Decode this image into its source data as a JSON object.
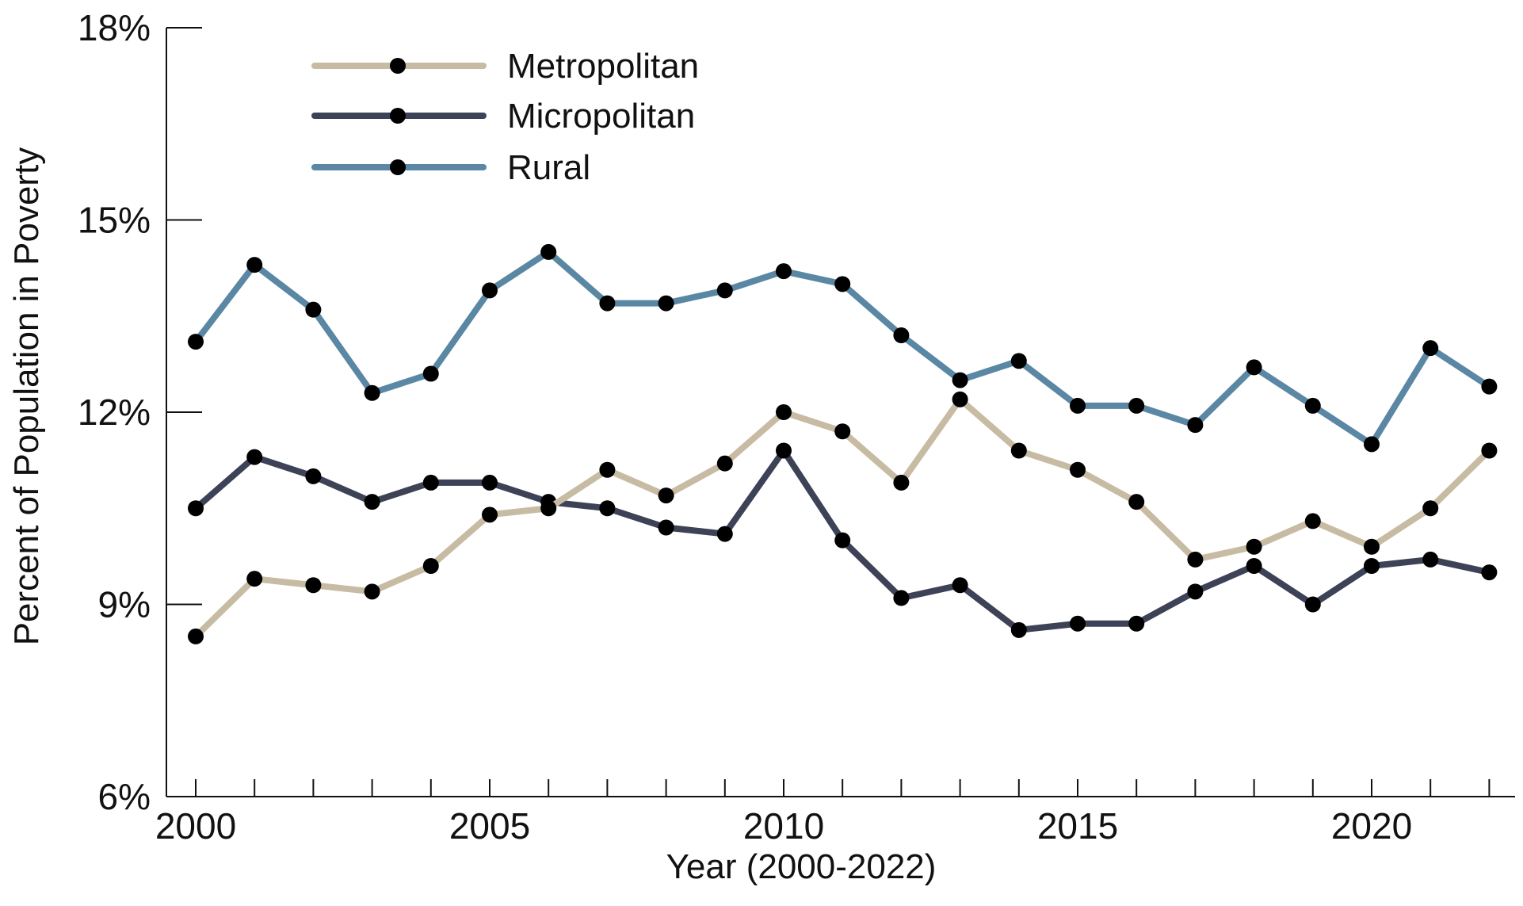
{
  "chart_data": {
    "type": "line",
    "title": "",
    "xlabel": "Year (2000-2022)",
    "ylabel": "Percent of Population in Poverty",
    "xlim": [
      2000,
      2022
    ],
    "ylim": [
      6,
      18
    ],
    "y_ticks": [
      6,
      9,
      12,
      15,
      18
    ],
    "y_tick_labels": [
      "6%",
      "9%",
      "12%",
      "15%",
      "18%"
    ],
    "x_ticks": [
      2000,
      2005,
      2010,
      2015,
      2020
    ],
    "x_tick_labels": [
      "2000",
      "2005",
      "2010",
      "2015",
      "2020"
    ],
    "grid": false,
    "legend_position": "top-left",
    "x": [
      2000,
      2001,
      2002,
      2003,
      2004,
      2005,
      2006,
      2007,
      2008,
      2009,
      2010,
      2011,
      2012,
      2013,
      2014,
      2015,
      2016,
      2017,
      2018,
      2019,
      2020,
      2021,
      2022
    ],
    "series": [
      {
        "name": "Metropolitan",
        "color": "#c8bba3",
        "values": [
          8.5,
          9.4,
          9.3,
          9.2,
          9.6,
          10.4,
          10.5,
          11.1,
          10.7,
          11.2,
          12.0,
          11.7,
          10.9,
          12.2,
          11.4,
          11.1,
          10.6,
          9.7,
          9.9,
          10.3,
          9.9,
          10.5,
          11.4
        ]
      },
      {
        "name": "Micropolitan",
        "color": "#3d4257",
        "values": [
          10.5,
          11.3,
          11.0,
          10.6,
          10.9,
          10.9,
          10.6,
          10.5,
          10.2,
          10.1,
          11.4,
          10.0,
          9.1,
          9.3,
          8.6,
          8.7,
          8.7,
          9.2,
          9.6,
          9.0,
          9.6,
          9.7,
          9.5
        ]
      },
      {
        "name": "Rural",
        "color": "#5a87a3",
        "values": [
          13.1,
          14.3,
          13.6,
          12.3,
          12.6,
          13.9,
          14.5,
          13.7,
          13.7,
          13.9,
          14.2,
          14.0,
          13.2,
          12.5,
          12.8,
          12.1,
          12.1,
          11.8,
          12.7,
          12.1,
          11.5,
          13.0,
          12.4
        ]
      }
    ]
  },
  "colors": {
    "axis": "#111111",
    "marker": "#000000",
    "background": "#ffffff"
  }
}
